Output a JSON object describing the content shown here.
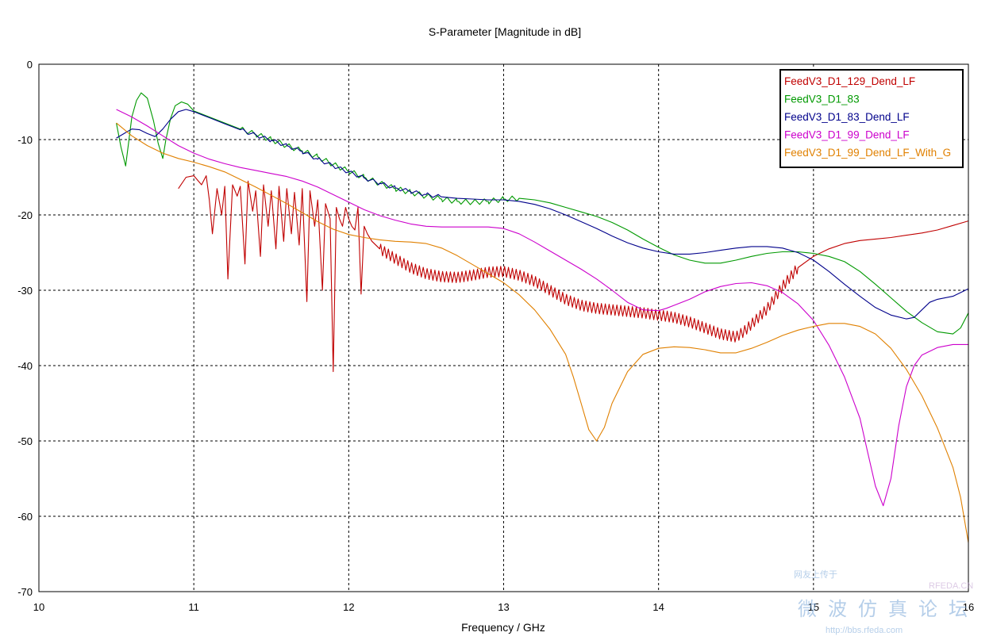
{
  "chart_data": {
    "type": "line",
    "title": "S-Parameter [Magnitude in dB]",
    "xlabel": "Frequency / GHz",
    "ylabel": "",
    "xlim": [
      10,
      16
    ],
    "ylim": [
      -70,
      0
    ],
    "xticks": [
      "10",
      "11",
      "12",
      "13",
      "14",
      "15",
      "16"
    ],
    "yticks": [
      "0",
      "-10",
      "-20",
      "-30",
      "-40",
      "-50",
      "-60",
      "-70"
    ],
    "grid": true,
    "legend_position": "top-right",
    "series": [
      {
        "name": "FeedV3_D1_129_Dend_LF",
        "color": "#c00000",
        "ripple": {
          "from": 12.2,
          "to": 14.9,
          "amp": 0.7,
          "period": 0.025
        },
        "x": [
          10.9,
          10.95,
          11.0,
          11.05,
          11.08,
          11.1,
          11.12,
          11.15,
          11.18,
          11.2,
          11.22,
          11.25,
          11.28,
          11.3,
          11.33,
          11.35,
          11.38,
          11.4,
          11.43,
          11.45,
          11.48,
          11.5,
          11.53,
          11.55,
          11.58,
          11.6,
          11.63,
          11.65,
          11.68,
          11.7,
          11.73,
          11.75,
          11.78,
          11.8,
          11.83,
          11.85,
          11.88,
          11.9,
          11.92,
          11.94,
          11.96,
          11.98,
          12.0,
          12.02,
          12.04,
          12.06,
          12.08,
          12.1,
          12.12,
          12.15,
          12.2,
          12.3,
          12.4,
          12.5,
          12.6,
          12.7,
          12.8,
          12.9,
          13.0,
          13.1,
          13.2,
          13.3,
          13.4,
          13.5,
          13.6,
          13.7,
          13.8,
          13.9,
          14.0,
          14.1,
          14.2,
          14.3,
          14.4,
          14.5,
          14.55,
          14.6,
          14.7,
          14.8,
          14.9,
          15.0,
          15.1,
          15.2,
          15.3,
          15.4,
          15.5,
          15.6,
          15.7,
          15.8,
          15.9,
          16.0
        ],
        "values": [
          -16.5,
          -15.0,
          -14.8,
          -16.0,
          -14.8,
          -18.0,
          -22.5,
          -16.5,
          -20.0,
          -16.2,
          -28.5,
          -16.0,
          -17.5,
          -16.2,
          -26.5,
          -15.5,
          -19.5,
          -16.8,
          -25.5,
          -16.0,
          -21.5,
          -16.8,
          -24.5,
          -16.2,
          -23.5,
          -16.5,
          -22.5,
          -17.0,
          -24.0,
          -16.5,
          -31.5,
          -16.8,
          -21.5,
          -18.0,
          -30.0,
          -18.5,
          -20.5,
          -40.8,
          -19.0,
          -20.5,
          -21.5,
          -19.0,
          -20.5,
          -21.5,
          -22.0,
          -19.0,
          -30.5,
          -21.5,
          -22.5,
          -23.5,
          -24.5,
          -25.8,
          -27.0,
          -27.8,
          -28.2,
          -28.3,
          -28.0,
          -27.6,
          -27.5,
          -28.0,
          -28.8,
          -30.0,
          -31.2,
          -32.0,
          -32.4,
          -32.6,
          -32.8,
          -33.0,
          -33.3,
          -33.6,
          -34.2,
          -35.0,
          -35.8,
          -36.2,
          -35.5,
          -34.5,
          -32.5,
          -29.5,
          -27.0,
          -25.5,
          -24.5,
          -23.8,
          -23.4,
          -23.2,
          -23.0,
          -22.7,
          -22.4,
          -22.0,
          -21.4,
          -20.8
        ]
      },
      {
        "name": "FeedV3_D1_83",
        "color": "#009900",
        "ripple": {
          "from": 11.3,
          "to": 13.1,
          "amp": 0.35,
          "period": 0.06
        },
        "x": [
          10.5,
          10.53,
          10.56,
          10.6,
          10.63,
          10.66,
          10.7,
          10.74,
          10.77,
          10.8,
          10.82,
          10.85,
          10.88,
          10.92,
          10.96,
          11.0,
          11.1,
          11.2,
          11.3,
          11.4,
          11.5,
          11.6,
          11.7,
          11.8,
          11.9,
          12.0,
          12.1,
          12.2,
          12.3,
          12.4,
          12.5,
          12.6,
          12.7,
          12.8,
          12.9,
          13.0,
          13.1,
          13.2,
          13.3,
          13.4,
          13.5,
          13.6,
          13.7,
          13.8,
          13.9,
          14.0,
          14.1,
          14.2,
          14.3,
          14.4,
          14.5,
          14.6,
          14.7,
          14.8,
          14.9,
          15.0,
          15.1,
          15.2,
          15.3,
          15.4,
          15.5,
          15.6,
          15.7,
          15.8,
          15.9,
          15.95,
          16.0
        ],
        "values": [
          -7.8,
          -11.0,
          -13.5,
          -7.0,
          -4.8,
          -3.8,
          -4.5,
          -7.5,
          -10.5,
          -12.5,
          -10.0,
          -7.2,
          -5.5,
          -5.0,
          -5.3,
          -6.2,
          -7.0,
          -7.8,
          -8.6,
          -9.3,
          -10.0,
          -10.8,
          -11.5,
          -12.3,
          -13.3,
          -14.2,
          -15.0,
          -15.8,
          -16.5,
          -17.0,
          -17.5,
          -17.9,
          -18.2,
          -18.3,
          -18.2,
          -17.9,
          -17.8,
          -18.0,
          -18.4,
          -19.0,
          -19.6,
          -20.2,
          -21.0,
          -22.0,
          -23.2,
          -24.3,
          -25.3,
          -26.0,
          -26.4,
          -26.4,
          -26.0,
          -25.5,
          -25.1,
          -24.9,
          -24.9,
          -25.1,
          -25.5,
          -26.2,
          -27.5,
          -29.2,
          -31.0,
          -32.8,
          -34.3,
          -35.5,
          -35.8,
          -35.0,
          -33.0
        ]
      },
      {
        "name": "FeedV3_D1_83_Dend_LF",
        "color": "#00008b",
        "ripple": {
          "from": 11.3,
          "to": 12.6,
          "amp": 0.25,
          "period": 0.07
        },
        "x": [
          10.5,
          10.55,
          10.6,
          10.65,
          10.7,
          10.75,
          10.8,
          10.85,
          10.9,
          10.95,
          11.0,
          11.1,
          11.2,
          11.3,
          11.4,
          11.5,
          11.6,
          11.7,
          11.8,
          11.9,
          12.0,
          12.1,
          12.2,
          12.3,
          12.4,
          12.5,
          12.6,
          12.7,
          12.8,
          12.9,
          13.0,
          13.1,
          13.2,
          13.3,
          13.4,
          13.5,
          13.6,
          13.7,
          13.8,
          13.9,
          14.0,
          14.1,
          14.2,
          14.3,
          14.4,
          14.5,
          14.6,
          14.7,
          14.8,
          14.9,
          15.0,
          15.1,
          15.2,
          15.3,
          15.4,
          15.5,
          15.6,
          15.65,
          15.7,
          15.75,
          15.8,
          15.9,
          16.0
        ],
        "values": [
          -9.8,
          -9.2,
          -8.6,
          -8.7,
          -9.2,
          -9.6,
          -8.6,
          -7.3,
          -6.3,
          -6.0,
          -6.3,
          -7.1,
          -7.9,
          -8.7,
          -9.4,
          -10.1,
          -10.8,
          -11.6,
          -12.6,
          -13.5,
          -14.3,
          -15.1,
          -15.8,
          -16.4,
          -16.9,
          -17.3,
          -17.6,
          -17.8,
          -17.9,
          -18.0,
          -18.0,
          -18.2,
          -18.6,
          -19.2,
          -20.0,
          -20.9,
          -21.8,
          -22.8,
          -23.7,
          -24.4,
          -24.9,
          -25.2,
          -25.2,
          -25.0,
          -24.7,
          -24.4,
          -24.2,
          -24.2,
          -24.4,
          -25.0,
          -26.0,
          -27.5,
          -29.2,
          -30.8,
          -32.3,
          -33.3,
          -33.8,
          -33.6,
          -32.6,
          -31.6,
          -31.2,
          -30.8,
          -29.8
        ]
      },
      {
        "name": "FeedV3_D1_99_Dend_LF",
        "color": "#cc00cc",
        "x": [
          10.5,
          10.6,
          10.7,
          10.8,
          10.9,
          11.0,
          11.1,
          11.2,
          11.3,
          11.4,
          11.5,
          11.6,
          11.7,
          11.8,
          11.9,
          12.0,
          12.1,
          12.2,
          12.3,
          12.4,
          12.5,
          12.6,
          12.7,
          12.8,
          12.9,
          13.0,
          13.1,
          13.2,
          13.3,
          13.4,
          13.5,
          13.6,
          13.7,
          13.8,
          13.9,
          14.0,
          14.05,
          14.1,
          14.2,
          14.3,
          14.4,
          14.5,
          14.6,
          14.7,
          14.8,
          14.9,
          15.0,
          15.1,
          15.2,
          15.3,
          15.35,
          15.4,
          15.45,
          15.5,
          15.55,
          15.6,
          15.65,
          15.7,
          15.8,
          15.9,
          16.0
        ],
        "values": [
          -6.0,
          -7.0,
          -8.2,
          -9.5,
          -10.8,
          -11.8,
          -12.6,
          -13.2,
          -13.7,
          -14.1,
          -14.5,
          -14.9,
          -15.5,
          -16.3,
          -17.3,
          -18.3,
          -19.3,
          -20.1,
          -20.7,
          -21.2,
          -21.5,
          -21.6,
          -21.6,
          -21.6,
          -21.6,
          -21.8,
          -22.5,
          -23.6,
          -24.8,
          -26.0,
          -27.2,
          -28.5,
          -30.0,
          -31.6,
          -32.6,
          -32.7,
          -32.4,
          -32.0,
          -31.2,
          -30.2,
          -29.5,
          -29.1,
          -29.0,
          -29.4,
          -30.3,
          -31.8,
          -34.0,
          -37.3,
          -41.5,
          -47.0,
          -51.5,
          -56.0,
          -58.6,
          -55.0,
          -48.0,
          -42.8,
          -40.0,
          -38.6,
          -37.6,
          -37.2,
          -37.2
        ]
      },
      {
        "name": "FeedV3_D1_99_Dend_LF_With_G",
        "color": "#e08000",
        "x": [
          10.5,
          10.6,
          10.7,
          10.8,
          10.9,
          11.0,
          11.1,
          11.2,
          11.3,
          11.4,
          11.5,
          11.6,
          11.7,
          11.8,
          11.9,
          12.0,
          12.1,
          12.2,
          12.3,
          12.4,
          12.5,
          12.6,
          12.7,
          12.8,
          12.9,
          13.0,
          13.1,
          13.2,
          13.3,
          13.4,
          13.45,
          13.5,
          13.55,
          13.6,
          13.65,
          13.7,
          13.8,
          13.9,
          14.0,
          14.1,
          14.2,
          14.3,
          14.4,
          14.5,
          14.6,
          14.7,
          14.8,
          14.9,
          15.0,
          15.1,
          15.2,
          15.3,
          15.4,
          15.5,
          15.6,
          15.7,
          15.8,
          15.9,
          15.95,
          16.0
        ],
        "values": [
          -7.8,
          -9.5,
          -10.8,
          -11.8,
          -12.5,
          -13.0,
          -13.6,
          -14.3,
          -15.3,
          -16.3,
          -17.4,
          -18.5,
          -19.7,
          -20.9,
          -21.9,
          -22.6,
          -23.0,
          -23.3,
          -23.5,
          -23.6,
          -23.8,
          -24.4,
          -25.4,
          -26.6,
          -27.8,
          -29.0,
          -30.6,
          -32.6,
          -35.2,
          -38.5,
          -41.5,
          -45.0,
          -48.5,
          -50.0,
          -48.2,
          -45.0,
          -40.8,
          -38.5,
          -37.7,
          -37.5,
          -37.6,
          -37.9,
          -38.3,
          -38.3,
          -37.7,
          -36.9,
          -36.0,
          -35.3,
          -34.8,
          -34.4,
          -34.4,
          -34.8,
          -35.8,
          -37.7,
          -40.5,
          -44.0,
          -48.3,
          -53.5,
          -57.5,
          -63.5
        ]
      }
    ]
  },
  "watermark": {
    "line1": "网友上传于",
    "site": "RFEDA.CN",
    "forum": "微波仿真论坛",
    "url": "http://bbs.rfeda.com"
  }
}
